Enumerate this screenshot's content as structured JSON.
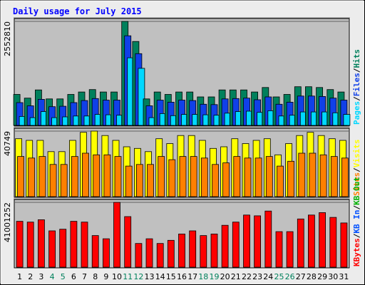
{
  "title": "Daily usage for July 2015",
  "chart_data": {
    "type": "bar",
    "title": "Daily usage for July 2015",
    "categories": [
      "1",
      "2",
      "3",
      "4",
      "5",
      "6",
      "7",
      "8",
      "9",
      "10",
      "11",
      "12",
      "13",
      "14",
      "15",
      "16",
      "17",
      "18",
      "19",
      "20",
      "21",
      "22",
      "23",
      "24",
      "25",
      "26",
      "27",
      "28",
      "29",
      "30",
      "31"
    ],
    "weekend_days": [
      "4",
      "5",
      "11",
      "12",
      "18",
      "19",
      "25",
      "26"
    ],
    "panels": [
      {
        "id": "traffic",
        "max_label": "2552810",
        "ylim": [
          0,
          2552810
        ],
        "series": [
          {
            "name": "Hits",
            "color": "#00805c",
            "values": [
              760000,
              670000,
              870000,
              650000,
              650000,
              760000,
              820000,
              880000,
              820000,
              820000,
              2552810,
              2060000,
              650000,
              820000,
              760000,
              820000,
              820000,
              700000,
              700000,
              870000,
              870000,
              870000,
              820000,
              930000,
              700000,
              760000,
              950000,
              950000,
              930000,
              880000,
              820000
            ]
          },
          {
            "name": "Files",
            "color": "#1040e8",
            "values": [
              560000,
              480000,
              640000,
              460000,
              470000,
              560000,
              610000,
              660000,
              620000,
              620000,
              2200000,
              1760000,
              480000,
              620000,
              570000,
              620000,
              610000,
              520000,
              510000,
              650000,
              660000,
              670000,
              630000,
              700000,
              520000,
              570000,
              720000,
              720000,
              710000,
              670000,
              620000
            ]
          },
          {
            "name": "Pages",
            "color": "#00d8ff",
            "values": [
              220000,
              190000,
              340000,
              190000,
              210000,
              230000,
              230000,
              270000,
              260000,
              250000,
              1660000,
              1400000,
              190000,
              290000,
              240000,
              270000,
              270000,
              260000,
              250000,
              300000,
              340000,
              350000,
              320000,
              360000,
              230000,
              250000,
              330000,
              330000,
              330000,
              310000,
              270000
            ]
          }
        ],
        "legend": [
          "Pages",
          "Files",
          "Hits"
        ]
      },
      {
        "id": "visits",
        "max_label": "40749",
        "ylim": [
          0,
          40749
        ],
        "series": [
          {
            "name": "Visits",
            "color": "#ffff00",
            "values": [
              36000,
              35000,
              35000,
              28000,
              28000,
              35000,
              40000,
              40749,
              38000,
              35000,
              31000,
              30000,
              28000,
              36000,
              33000,
              38000,
              38000,
              35000,
              30000,
              31000,
              36000,
              33000,
              35000,
              36000,
              26000,
              33000,
              38000,
              40000,
              38000,
              36000,
              35000
            ]
          },
          {
            "name": "Sites",
            "color": "#ff8000",
            "values": [
              25000,
              24000,
              25000,
              20000,
              20000,
              25000,
              27000,
              26000,
              26000,
              25000,
              19000,
              20000,
              20000,
              25000,
              23000,
              25000,
              25000,
              24000,
              20000,
              21000,
              25000,
              24000,
              24000,
              25000,
              19000,
              22000,
              27000,
              27000,
              26000,
              25000,
              24000
            ]
          }
        ],
        "legend": [
          "Sites",
          "Visits"
        ]
      },
      {
        "id": "kbytes",
        "max_label": "41001252",
        "ylim": [
          0,
          41001252
        ],
        "series": [
          {
            "name": "KBytes",
            "color": "#ff0000",
            "values": [
              29000000,
              28500000,
              30000000,
              23000000,
              24000000,
              29000000,
              28500000,
              20000000,
              18000000,
              41001252,
              32000000,
              15000000,
              18000000,
              15000000,
              17000000,
              21000000,
              23000000,
              20000000,
              21000000,
              26500000,
              28500000,
              33000000,
              32500000,
              35500000,
              22500000,
              22500000,
              30500000,
              33000000,
              34500000,
              31500000,
              28000000
            ]
          }
        ],
        "legend": [
          "KBytes",
          "KB In",
          "KB Out"
        ]
      }
    ],
    "legend_colors": {
      "Hits": "#00805c",
      "Files": "#1040e8",
      "Pages": "#00d8ff",
      "Visits": "#ffff00",
      "Sites": "#ff8000",
      "KBytes": "#ff0000",
      "KB In": "#0050ff",
      "KB Out": "#00b000"
    },
    "colors": {
      "title": "#0000ff",
      "plot_bg": "#c0c0c0",
      "frame_bg": "#ececec",
      "weekday_label": "#000000",
      "weekend_label": "#00805c",
      "separator": "#606060"
    }
  }
}
